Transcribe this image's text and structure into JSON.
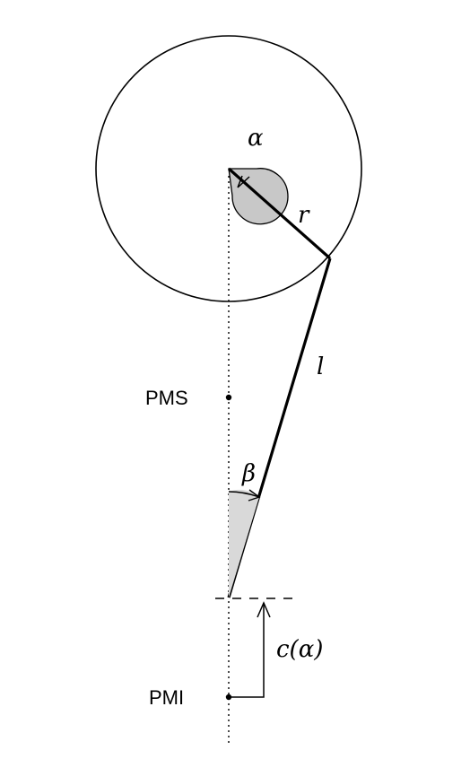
{
  "labels": {
    "angle_alpha": "α",
    "radius": "r",
    "rod_length": "l",
    "angle_beta": "β",
    "displacement": "c(α)",
    "top_dead_center": "PMS",
    "bottom_dead_center": "PMI"
  },
  "colors": {
    "stroke": "#000000",
    "crank_hub_fill": "#c8c8c8",
    "beta_wedge_fill": "#d9d9d9",
    "background": "#ffffff"
  }
}
